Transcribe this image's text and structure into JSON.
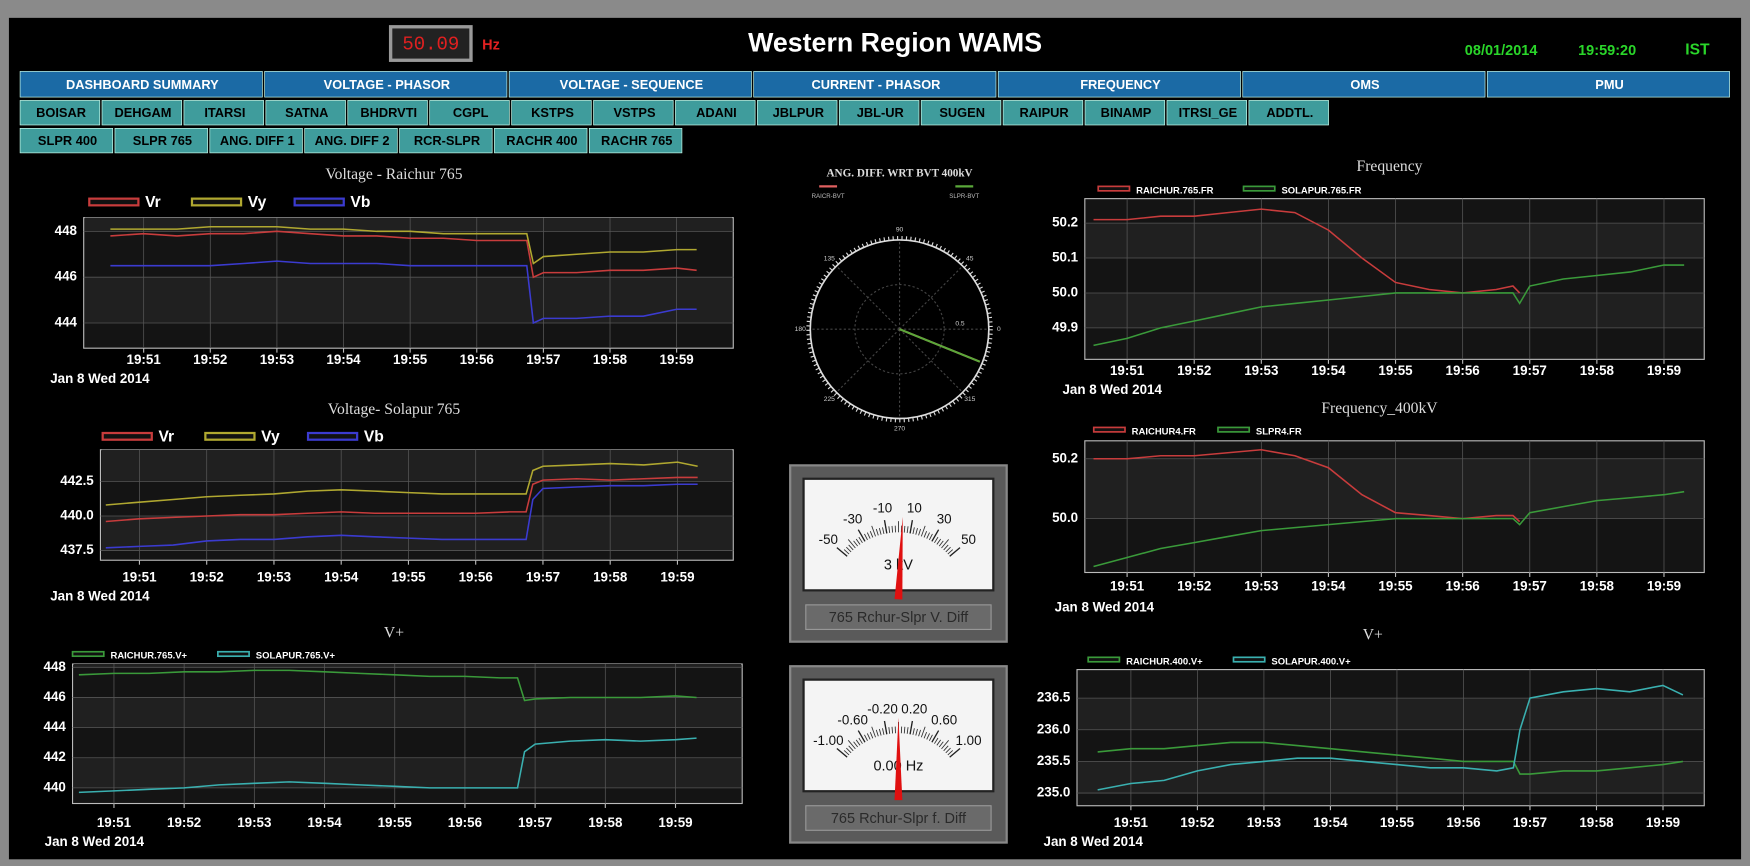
{
  "header": {
    "frequency": "50.09",
    "frequency_unit": "Hz",
    "title": "Western Region WAMS",
    "date": "08/01/2014",
    "time": "19:59:20",
    "timezone": "IST"
  },
  "tabs": {
    "main": [
      "DASHBOARD SUMMARY",
      "VOLTAGE - PHASOR",
      "VOLTAGE - SEQUENCE",
      "CURRENT - PHASOR",
      "FREQUENCY",
      "OMS",
      "PMU"
    ],
    "stations": [
      "BOISAR",
      "DEHGAM",
      "ITARSI",
      "SATNA",
      "BHDRVTI",
      "CGPL",
      "KSTPS",
      "VSTPS",
      "ADANI",
      "JBLPUR",
      "JBL-UR",
      "SUGEN",
      "RAIPUR",
      "BINAMP",
      "ITRSI_GE",
      "ADDTL."
    ],
    "sub": [
      "SLPR 400",
      "SLPR 765",
      "ANG. DIFF 1",
      "ANG. DIFF 2",
      "RCR-SLPR",
      "RACHR 400",
      "RACHR 765"
    ]
  },
  "chart_data": [
    {
      "type": "line",
      "title": "Voltage - Raichur 765",
      "xlabel": "Jan 8 Wed 2014",
      "x": [
        1190.5,
        1191,
        1191.5,
        1192,
        1192.5,
        1193,
        1193.5,
        1194,
        1194.5,
        1195,
        1195.5,
        1196,
        1196.5,
        1196.75,
        1196.85,
        1197,
        1197.5,
        1198,
        1198.5,
        1199,
        1199.3
      ],
      "xlim": [
        1190.1,
        1199.85
      ],
      "xticks": [
        {
          "value": 1191,
          "label": "19:51"
        },
        {
          "value": 1192,
          "label": "19:52"
        },
        {
          "value": 1193,
          "label": "19:53"
        },
        {
          "value": 1194,
          "label": "19:54"
        },
        {
          "value": 1195,
          "label": "19:55"
        },
        {
          "value": 1196,
          "label": "19:56"
        },
        {
          "value": 1197,
          "label": "19:57"
        },
        {
          "value": 1198,
          "label": "19:58"
        },
        {
          "value": 1199,
          "label": "19:59"
        }
      ],
      "ylim": [
        442.9,
        448.6
      ],
      "yticks": [
        444,
        446,
        448
      ],
      "grid": true,
      "series": [
        {
          "name": "Vr",
          "color": "#c83c3c",
          "values": [
            447.8,
            447.9,
            447.8,
            447.9,
            447.9,
            448,
            447.9,
            447.8,
            447.8,
            447.7,
            447.7,
            447.6,
            447.6,
            447.6,
            446.0,
            446.2,
            446.2,
            446.3,
            446.3,
            446.4,
            446.3
          ]
        },
        {
          "name": "Vy",
          "color": "#b0a830",
          "values": [
            448.1,
            448.1,
            448.1,
            448.2,
            448.2,
            448.2,
            448.1,
            448.1,
            448.0,
            448.0,
            447.9,
            447.9,
            447.9,
            447.9,
            446.6,
            446.9,
            447.0,
            447.1,
            447.1,
            447.2,
            447.2
          ]
        },
        {
          "name": "Vb",
          "color": "#3b3bd0",
          "values": [
            446.5,
            446.5,
            446.5,
            446.5,
            446.6,
            446.7,
            446.6,
            446.6,
            446.6,
            446.5,
            446.5,
            446.5,
            446.5,
            446.5,
            444.0,
            444.2,
            444.2,
            444.3,
            444.3,
            444.6,
            444.6
          ]
        }
      ]
    },
    {
      "type": "line",
      "title": "Voltage- Solapur 765",
      "xlabel": "Jan 8 Wed 2014",
      "x": [
        1190.5,
        1191,
        1191.5,
        1192,
        1192.5,
        1193,
        1193.5,
        1194,
        1194.5,
        1195,
        1195.5,
        1196,
        1196.5,
        1196.75,
        1196.85,
        1197,
        1197.5,
        1198,
        1198.5,
        1199,
        1199.3
      ],
      "xlim": [
        1190.42,
        1199.83
      ],
      "xticks": [
        {
          "value": 1191,
          "label": "19:51"
        },
        {
          "value": 1192,
          "label": "19:52"
        },
        {
          "value": 1193,
          "label": "19:53"
        },
        {
          "value": 1194,
          "label": "19:54"
        },
        {
          "value": 1195,
          "label": "19:55"
        },
        {
          "value": 1196,
          "label": "19:56"
        },
        {
          "value": 1197,
          "label": "19:57"
        },
        {
          "value": 1198,
          "label": "19:58"
        },
        {
          "value": 1199,
          "label": "19:59"
        }
      ],
      "ylim": [
        436.8,
        444.8
      ],
      "yticks": [
        437.5,
        {
          "value": 440,
          "label": "440.0"
        },
        442.5
      ],
      "grid": true,
      "series": [
        {
          "name": "Vr",
          "color": "#c83c3c",
          "values": [
            439.6,
            439.8,
            439.9,
            440.0,
            440.1,
            440.1,
            440.2,
            440.3,
            440.2,
            440.2,
            440.2,
            440.2,
            440.3,
            440.3,
            442.3,
            442.6,
            442.7,
            442.6,
            442.7,
            442.8,
            442.8
          ]
        },
        {
          "name": "Vy",
          "color": "#b0a830",
          "values": [
            440.8,
            441.0,
            441.2,
            441.4,
            441.5,
            441.6,
            441.8,
            441.9,
            441.8,
            441.7,
            441.6,
            441.6,
            441.6,
            441.6,
            443.3,
            443.6,
            443.7,
            443.8,
            443.7,
            443.9,
            443.6
          ]
        },
        {
          "name": "Vb",
          "color": "#3b3bd0",
          "values": [
            437.7,
            437.8,
            437.9,
            438.2,
            438.3,
            438.3,
            438.5,
            438.6,
            438.5,
            438.4,
            438.3,
            438.3,
            438.3,
            438.3,
            441.2,
            442.0,
            442.1,
            442.2,
            442.2,
            442.3,
            442.3
          ]
        }
      ]
    },
    {
      "type": "line",
      "title": "V+",
      "xlabel": "Jan 8 Wed 2014",
      "x": [
        1190.5,
        1191,
        1191.5,
        1192,
        1192.5,
        1193,
        1193.5,
        1194,
        1194.5,
        1195,
        1195.5,
        1196,
        1196.5,
        1196.75,
        1196.85,
        1197,
        1197.5,
        1198,
        1198.5,
        1199,
        1199.3
      ],
      "xlim": [
        1190.41,
        1199.95
      ],
      "xticks": [
        {
          "value": 1191,
          "label": "19:51"
        },
        {
          "value": 1192,
          "label": "19:52"
        },
        {
          "value": 1193,
          "label": "19:53"
        },
        {
          "value": 1194,
          "label": "19:54"
        },
        {
          "value": 1195,
          "label": "19:55"
        },
        {
          "value": 1196,
          "label": "19:56"
        },
        {
          "value": 1197,
          "label": "19:57"
        },
        {
          "value": 1198,
          "label": "19:58"
        },
        {
          "value": 1199,
          "label": "19:59"
        }
      ],
      "ylim": [
        438.96,
        448.22
      ],
      "yticks": [
        440,
        442,
        444,
        446,
        448
      ],
      "grid": true,
      "series": [
        {
          "name": "RAICHUR.765.V+",
          "color": "#3a9a3a",
          "values": [
            447.5,
            447.6,
            447.6,
            447.7,
            447.7,
            447.8,
            447.8,
            447.7,
            447.6,
            447.5,
            447.4,
            447.4,
            447.3,
            447.3,
            445.8,
            445.9,
            446.0,
            446.0,
            446.0,
            446.1,
            446.0
          ]
        },
        {
          "name": "SOLAPUR.765.V+",
          "color": "#3ab0b0",
          "values": [
            439.7,
            439.8,
            439.9,
            440.0,
            440.2,
            440.3,
            440.4,
            440.3,
            440.2,
            440.1,
            440.0,
            440.0,
            440.0,
            440.0,
            442.4,
            442.9,
            443.1,
            443.2,
            443.1,
            443.2,
            443.3
          ]
        }
      ]
    },
    {
      "type": "line",
      "title": "Frequency",
      "xlabel": "Jan 8 Wed 2014",
      "x": [
        1190.5,
        1191,
        1191.5,
        1192,
        1192.5,
        1193,
        1193.5,
        1194,
        1194.5,
        1195,
        1195.5,
        1196,
        1196.5,
        1196.75,
        1196.85,
        1197,
        1197.5,
        1198,
        1198.5,
        1199,
        1199.3
      ],
      "xlim": [
        1190.37,
        1199.6
      ],
      "xticks": [
        {
          "value": 1191,
          "label": "19:51"
        },
        {
          "value": 1192,
          "label": "19:52"
        },
        {
          "value": 1193,
          "label": "19:53"
        },
        {
          "value": 1194,
          "label": "19:54"
        },
        {
          "value": 1195,
          "label": "19:55"
        },
        {
          "value": 1196,
          "label": "19:56"
        },
        {
          "value": 1197,
          "label": "19:57"
        },
        {
          "value": 1198,
          "label": "19:58"
        },
        {
          "value": 1199,
          "label": "19:59"
        }
      ],
      "ylim": [
        49.81,
        50.27
      ],
      "yticks": [
        49.9,
        {
          "value": 50,
          "label": "50.0"
        },
        50.1,
        50.2
      ],
      "grid": true,
      "series": [
        {
          "name": "RAICHUR.765.FR",
          "color": "#c83c3c",
          "values": [
            50.21,
            50.21,
            50.22,
            50.22,
            50.23,
            50.24,
            50.23,
            50.18,
            50.1,
            50.03,
            50.01,
            50.0,
            50.01,
            50.02,
            50.0,
            null,
            null,
            null,
            null,
            null,
            null
          ]
        },
        {
          "name": "SOLAPUR.765.FR",
          "color": "#3a9a3a",
          "values": [
            49.85,
            49.87,
            49.9,
            49.92,
            49.94,
            49.96,
            49.97,
            49.98,
            49.99,
            50.0,
            50.0,
            50.0,
            50.0,
            50.0,
            49.97,
            50.02,
            50.04,
            50.05,
            50.06,
            50.08,
            50.08
          ]
        }
      ]
    },
    {
      "type": "line",
      "title": "Frequency_400kV",
      "xlabel": "Jan 8 Wed 2014",
      "x": [
        1190.5,
        1191,
        1191.5,
        1192,
        1192.5,
        1193,
        1193.5,
        1194,
        1194.5,
        1195,
        1195.5,
        1196,
        1196.5,
        1196.75,
        1196.85,
        1197,
        1197.5,
        1198,
        1198.5,
        1199,
        1199.3
      ],
      "xlim": [
        1190.37,
        1199.6
      ],
      "xticks": [
        {
          "value": 1191,
          "label": "19:51"
        },
        {
          "value": 1192,
          "label": "19:52"
        },
        {
          "value": 1193,
          "label": "19:53"
        },
        {
          "value": 1194,
          "label": "19:54"
        },
        {
          "value": 1195,
          "label": "19:55"
        },
        {
          "value": 1196,
          "label": "19:56"
        },
        {
          "value": 1197,
          "label": "19:57"
        },
        {
          "value": 1198,
          "label": "19:58"
        },
        {
          "value": 1199,
          "label": "19:59"
        }
      ],
      "ylim": [
        49.82,
        50.26
      ],
      "yticks": [
        {
          "value": 50,
          "label": "50.0"
        },
        50.2
      ],
      "grid": true,
      "series": [
        {
          "name": "RAICHUR4.FR",
          "color": "#c83c3c",
          "values": [
            50.2,
            50.2,
            50.21,
            50.21,
            50.22,
            50.23,
            50.21,
            50.17,
            50.08,
            50.02,
            50.01,
            50.0,
            50.01,
            50.01,
            49.99,
            null,
            null,
            null,
            null,
            null,
            null
          ]
        },
        {
          "name": "SLPR4.FR",
          "color": "#3a9a3a",
          "values": [
            49.84,
            49.87,
            49.9,
            49.92,
            49.94,
            49.96,
            49.97,
            49.98,
            49.99,
            50.0,
            50.0,
            50.0,
            50.0,
            50.0,
            49.98,
            50.02,
            50.04,
            50.06,
            50.07,
            50.08,
            50.09
          ]
        }
      ]
    },
    {
      "type": "line",
      "title": "V+",
      "xlabel": "Jan 8 Wed 2014",
      "x": [
        1190.5,
        1191,
        1191.5,
        1192,
        1192.5,
        1193,
        1193.5,
        1194,
        1194.5,
        1195,
        1195.5,
        1196,
        1196.5,
        1196.75,
        1196.85,
        1197,
        1197.5,
        1198,
        1198.5,
        1199,
        1199.3
      ],
      "xlim": [
        1190.19,
        1199.62
      ],
      "xticks": [
        {
          "value": 1191,
          "label": "19:51"
        },
        {
          "value": 1192,
          "label": "19:52"
        },
        {
          "value": 1193,
          "label": "19:53"
        },
        {
          "value": 1194,
          "label": "19:54"
        },
        {
          "value": 1195,
          "label": "19:55"
        },
        {
          "value": 1196,
          "label": "19:56"
        },
        {
          "value": 1197,
          "label": "19:57"
        },
        {
          "value": 1198,
          "label": "19:58"
        },
        {
          "value": 1199,
          "label": "19:59"
        }
      ],
      "ylim": [
        234.8,
        236.95
      ],
      "yticks": [
        {
          "value": 235,
          "label": "235.0"
        },
        235.5,
        {
          "value": 236,
          "label": "236.0"
        },
        236.5
      ],
      "grid": true,
      "series": [
        {
          "name": "RAICHUR.400.V+",
          "color": "#3a9a3a",
          "values": [
            235.65,
            235.7,
            235.7,
            235.75,
            235.8,
            235.8,
            235.75,
            235.7,
            235.65,
            235.6,
            235.55,
            235.5,
            235.5,
            235.5,
            235.3,
            235.3,
            235.35,
            235.35,
            235.4,
            235.45,
            235.5
          ]
        },
        {
          "name": "SOLAPUR.400.V+",
          "color": "#3ab0b0",
          "values": [
            235.05,
            235.15,
            235.2,
            235.35,
            235.45,
            235.5,
            235.55,
            235.55,
            235.5,
            235.45,
            235.4,
            235.4,
            235.35,
            235.4,
            236.0,
            236.5,
            236.6,
            236.65,
            236.6,
            236.7,
            236.55
          ]
        }
      ]
    },
    {
      "type": "polar",
      "title": "ANG. DIFF. WRT BVT 400kV",
      "angle_ticks": [
        0,
        45,
        90,
        135,
        180,
        225,
        270,
        315
      ],
      "rlim": [
        0,
        1
      ],
      "rticks": [
        0.5
      ],
      "series": [
        {
          "name": "RAICR-BVT",
          "color": "#e06060",
          "angle": 338,
          "magnitude": 0.97
        },
        {
          "name": "SLPR-BVT",
          "color": "#5aa83a",
          "angle": 338,
          "magnitude": 0.97
        }
      ]
    },
    {
      "type": "gauge",
      "label": "765 Rchur-Slpr V. Diff",
      "lim": [
        -50,
        50
      ],
      "ticks": [
        -50,
        -30,
        -10,
        10,
        30,
        50
      ],
      "value": 3,
      "value_label": "3 kV",
      "color": "#e01010"
    },
    {
      "type": "gauge",
      "label": "765 Rchur-Slpr f. Diff",
      "lim": [
        -1,
        1
      ],
      "ticks": [
        {
          "value": -1,
          "label": "-1.00"
        },
        {
          "value": -0.6,
          "label": "-0.60"
        },
        {
          "value": -0.2,
          "label": "-0.20"
        },
        {
          "value": 0.2,
          "label": "0.20"
        },
        {
          "value": 0.6,
          "label": "0.60"
        },
        {
          "value": 1,
          "label": "1.00"
        }
      ],
      "value": 0,
      "value_label": "0.00 Hz",
      "color": "#e01010"
    }
  ]
}
